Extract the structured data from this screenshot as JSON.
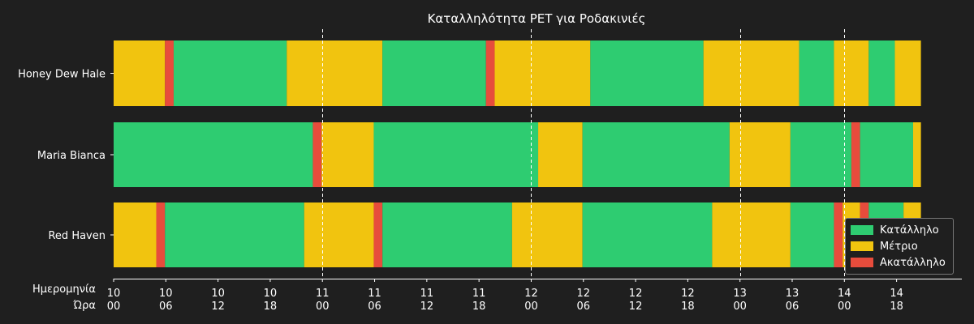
{
  "chart_data": {
    "type": "timeline",
    "title": "Καταλληλότητα PET για Ροδακινιές",
    "xlabel_row1": "Ημερομηνία",
    "xlabel_row2": "Ώρα",
    "ticks": [
      {
        "day": "10",
        "hour": "00",
        "t": 0
      },
      {
        "day": "10",
        "hour": "06",
        "t": 6
      },
      {
        "day": "10",
        "hour": "12",
        "t": 12
      },
      {
        "day": "10",
        "hour": "18",
        "t": 18
      },
      {
        "day": "11",
        "hour": "00",
        "t": 24
      },
      {
        "day": "11",
        "hour": "06",
        "t": 30
      },
      {
        "day": "11",
        "hour": "12",
        "t": 36
      },
      {
        "day": "11",
        "hour": "18",
        "t": 42
      },
      {
        "day": "12",
        "hour": "00",
        "t": 48
      },
      {
        "day": "12",
        "hour": "06",
        "t": 54
      },
      {
        "day": "12",
        "hour": "12",
        "t": 60
      },
      {
        "day": "12",
        "hour": "18",
        "t": 66
      },
      {
        "day": "13",
        "hour": "00",
        "t": 72
      },
      {
        "day": "13",
        "hour": "06",
        "t": 78
      },
      {
        "day": "14",
        "hour": "00",
        "t": 84
      },
      {
        "day": "14",
        "hour": "18",
        "t": 90
      }
    ],
    "vlines": [
      24,
      48,
      72,
      84
    ],
    "xlim": [
      0,
      97.5
    ],
    "categories": [
      "Honey Dew Hale",
      "Maria Bianca",
      "Red Haven"
    ],
    "legend": [
      {
        "key": "good",
        "label": "Κατάλληλο",
        "color": "#2ecc71"
      },
      {
        "key": "mid",
        "label": "Μέτριο",
        "color": "#f1c40f"
      },
      {
        "key": "bad",
        "label": "Ακατάλληλο",
        "color": "#e74c3c"
      }
    ],
    "legend_position": "lower-right",
    "series": [
      {
        "category": "Honey Dew Hale",
        "segments": [
          [
            0,
            5.9,
            "mid"
          ],
          [
            5.9,
            6.9,
            "bad"
          ],
          [
            6.9,
            19.9,
            "good"
          ],
          [
            19.9,
            30.9,
            "mid"
          ],
          [
            30.9,
            42.8,
            "good"
          ],
          [
            42.8,
            43.8,
            "bad"
          ],
          [
            43.8,
            54.8,
            "mid"
          ],
          [
            54.8,
            67.8,
            "good"
          ],
          [
            67.8,
            78.8,
            "mid"
          ],
          [
            78.8,
            82.8,
            "good"
          ],
          [
            82.8,
            86.8,
            "mid"
          ],
          [
            86.8,
            89.8,
            "good"
          ],
          [
            89.8,
            92.8,
            "mid"
          ]
        ]
      },
      {
        "category": "Maria Bianca",
        "segments": [
          [
            0,
            22.9,
            "good"
          ],
          [
            22.9,
            23.9,
            "bad"
          ],
          [
            23.9,
            29.9,
            "mid"
          ],
          [
            29.9,
            48.8,
            "good"
          ],
          [
            48.8,
            53.9,
            "mid"
          ],
          [
            53.9,
            70.8,
            "good"
          ],
          [
            70.8,
            77.8,
            "mid"
          ],
          [
            77.8,
            84.8,
            "good"
          ],
          [
            84.8,
            85.8,
            "bad"
          ],
          [
            85.8,
            91.9,
            "good"
          ],
          [
            91.9,
            92.8,
            "mid"
          ]
        ]
      },
      {
        "category": "Red Haven",
        "segments": [
          [
            0,
            4.9,
            "mid"
          ],
          [
            4.9,
            5.9,
            "bad"
          ],
          [
            5.9,
            21.9,
            "good"
          ],
          [
            21.9,
            29.9,
            "mid"
          ],
          [
            29.9,
            30.9,
            "bad"
          ],
          [
            30.9,
            45.8,
            "good"
          ],
          [
            45.8,
            53.9,
            "mid"
          ],
          [
            53.9,
            68.8,
            "good"
          ],
          [
            68.8,
            77.8,
            "mid"
          ],
          [
            77.8,
            82.8,
            "good"
          ],
          [
            82.8,
            83.8,
            "bad"
          ],
          [
            83.8,
            85.8,
            "mid"
          ],
          [
            85.8,
            86.8,
            "bad"
          ],
          [
            86.8,
            90.8,
            "good"
          ],
          [
            90.8,
            92.8,
            "mid"
          ]
        ]
      }
    ]
  }
}
